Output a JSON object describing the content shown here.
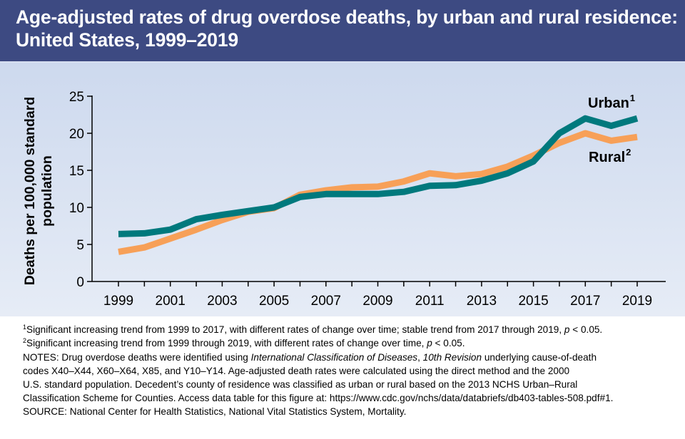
{
  "title": {
    "line1": "Age-adjusted rates of drug overdose deaths, by urban and rural residence:",
    "line2": "United States, 1999–2019"
  },
  "chart_data": {
    "type": "line",
    "x": [
      1999,
      2000,
      2001,
      2002,
      2003,
      2004,
      2005,
      2006,
      2007,
      2008,
      2009,
      2010,
      2011,
      2012,
      2013,
      2014,
      2015,
      2016,
      2017,
      2018,
      2019
    ],
    "series": [
      {
        "name": "Urban",
        "sup": "1",
        "color": "#00797d",
        "values": [
          6.4,
          6.5,
          7.0,
          8.4,
          9.0,
          9.5,
          10.0,
          11.4,
          11.8,
          11.8,
          11.8,
          12.1,
          12.9,
          13.0,
          13.6,
          14.6,
          16.2,
          20.0,
          22.0,
          21.0,
          22.0
        ]
      },
      {
        "name": "Rural",
        "sup": "2",
        "color": "#f7a058",
        "values": [
          4.0,
          4.6,
          5.8,
          7.0,
          8.3,
          9.4,
          9.9,
          11.7,
          12.3,
          12.7,
          12.8,
          13.5,
          14.6,
          14.2,
          14.5,
          15.5,
          17.0,
          18.7,
          20.0,
          19.0,
          19.5
        ]
      }
    ],
    "ylabel_line1": "Deaths per 100,000 standard",
    "ylabel_line2": "population",
    "ylim": [
      0,
      25
    ],
    "yticks": [
      0,
      5,
      10,
      15,
      20,
      25
    ],
    "xticks": [
      1999,
      2001,
      2003,
      2005,
      2007,
      2009,
      2011,
      2013,
      2015,
      2017,
      2019
    ],
    "grid": false,
    "legend": "inline labels at right"
  },
  "footnotes": {
    "fn1_mark": "1",
    "fn1_text": "Significant increasing trend from 1999 to 2017, with different rates of change over time; stable trend from 2017 through 2019, ",
    "fn1_p": "p",
    "fn1_end": " < 0.05.",
    "fn2_mark": "2",
    "fn2_text": "Significant increasing trend from 1999 through 2019, with different rates of change over time, ",
    "fn2_p": "p",
    "fn2_end": " < 0.05."
  },
  "notes": {
    "a1": "NOTES: Drug overdose deaths were identified using ",
    "a_icd": "International Classification of Diseases",
    "a2": ", ",
    "a_rev": "10th Revision",
    "a3": " underlying cause-of-death",
    "line2": "codes X40–X44, X60–X64, X85, and Y10–Y14. Age-adjusted death rates were calculated using the direct method and the 2000",
    "line3": "U.S. standard population. Decedent’s county of residence was classified as urban or rural based on the 2013 NCHS Urban–Rural",
    "line4": "Classification Scheme for Counties. Access data table for this figure at: https://www.cdc.gov/nchs/data/databriefs/db403-tables-508.pdf#1."
  },
  "source": "SOURCE: National Center for Health Statistics, National Vital Statistics System, Mortality."
}
